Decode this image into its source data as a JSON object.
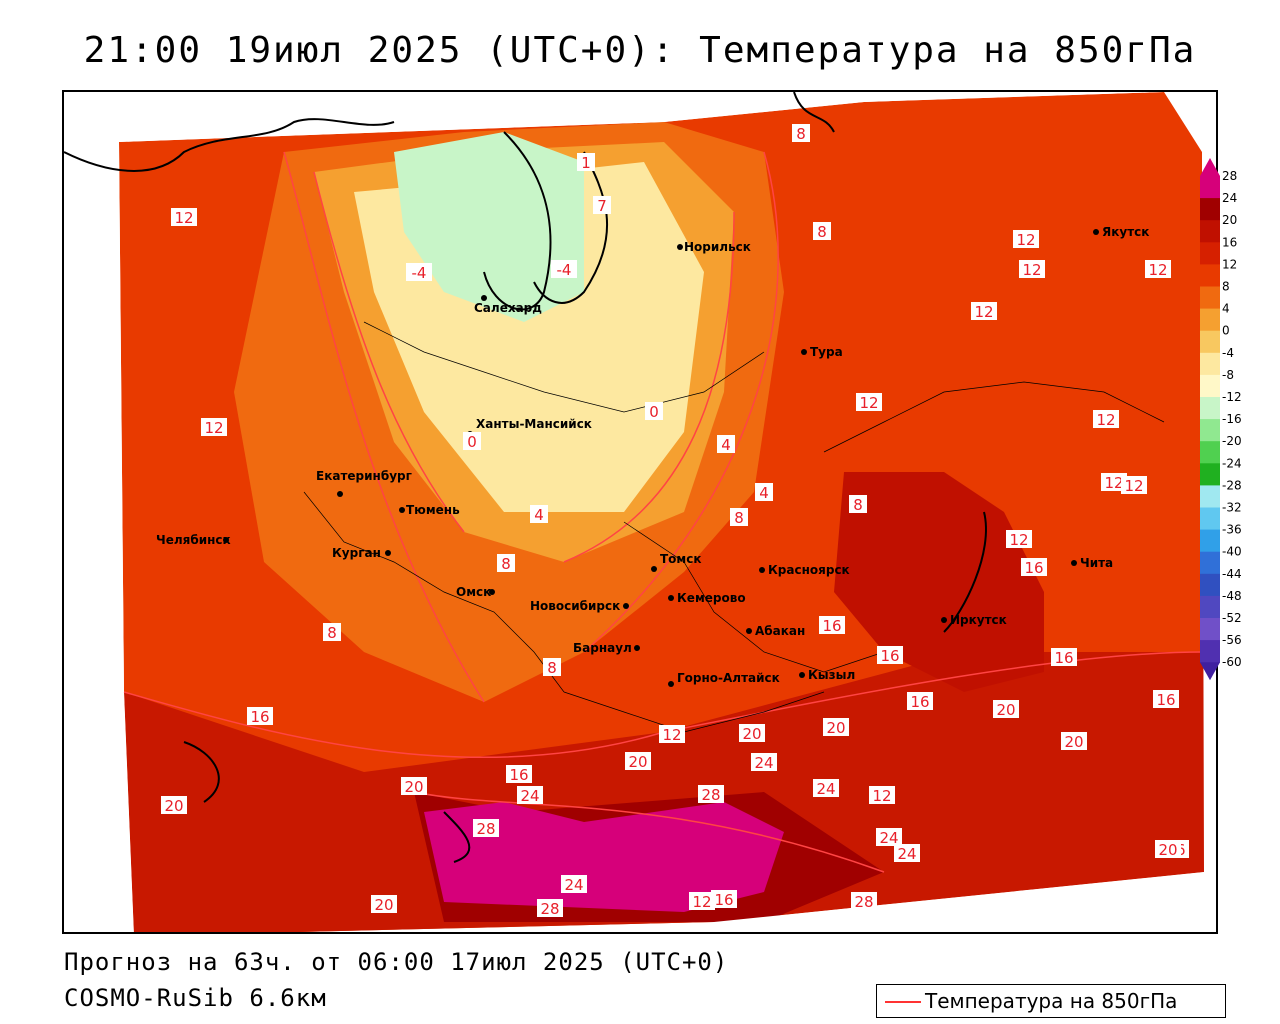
{
  "title": "21:00 19июл 2025 (UTC+0): Температура на 850гПа",
  "forecast_line": "Прогноз на 63ч. от 06:00 17июл 2025 (UTC+0)",
  "model_line": "COSMO-RuSib 6.6км",
  "legend": {
    "label": "Температура на 850гПа",
    "line_color": "#ff3333"
  },
  "colorbar": {
    "ticks": [
      "28",
      "24",
      "20",
      "16",
      "12",
      "8",
      "4",
      "0",
      "-4",
      "-8",
      "-12",
      "-16",
      "-20",
      "-24",
      "-28",
      "-32",
      "-36",
      "-40",
      "-44",
      "-48",
      "-52",
      "-56",
      "-60"
    ],
    "colors": [
      "#d6007a",
      "#a00000",
      "#c01000",
      "#d62000",
      "#e83a00",
      "#f06a10",
      "#f5a030",
      "#f8c860",
      "#fde8a0",
      "#fff8c8",
      "#c8f5c8",
      "#90e890",
      "#50d050",
      "#20b020",
      "#a0e8f0",
      "#60c8f0",
      "#30a0e8",
      "#3070d8",
      "#3050c0",
      "#5048c0",
      "#7050c8",
      "#5030b0",
      "#4020a0"
    ]
  },
  "cities": [
    {
      "name": "Салехард"
    },
    {
      "name": "Норильск"
    },
    {
      "name": "Якутск"
    },
    {
      "name": "Тура"
    },
    {
      "name": "Ханты-Мансийск"
    },
    {
      "name": "Екатеринбург"
    },
    {
      "name": "Тюмень"
    },
    {
      "name": "Челябинск"
    },
    {
      "name": "Курган"
    },
    {
      "name": "Омск"
    },
    {
      "name": "Новосибирск"
    },
    {
      "name": "Томск"
    },
    {
      "name": "Кемерово"
    },
    {
      "name": "Красноярск"
    },
    {
      "name": "Абакан"
    },
    {
      "name": "Барнаул"
    },
    {
      "name": "Горно-Алтайск"
    },
    {
      "name": "Кызыл"
    },
    {
      "name": "Иркутск"
    },
    {
      "name": "Чита"
    }
  ],
  "contour_labels": [
    "12",
    "8",
    "8",
    "12",
    "12",
    "12",
    "12",
    "12",
    "-4",
    "-4",
    "0",
    "0",
    "4",
    "4",
    "4",
    "8",
    "8",
    "8",
    "8",
    "8",
    "12",
    "12",
    "12",
    "12",
    "12",
    "16",
    "16",
    "16",
    "16",
    "16",
    "16",
    "20",
    "20",
    "20",
    "20",
    "20",
    "24",
    "24",
    "24",
    "24",
    "28",
    "28",
    "28",
    "12",
    "16",
    "20",
    "24",
    "20",
    "28",
    "16",
    "20",
    "24",
    "12",
    "16",
    "20",
    "12",
    "16",
    "1",
    "7"
  ],
  "colors": {
    "accent": "#e8202a",
    "contour": "#ff4444",
    "coast": "#000000"
  }
}
